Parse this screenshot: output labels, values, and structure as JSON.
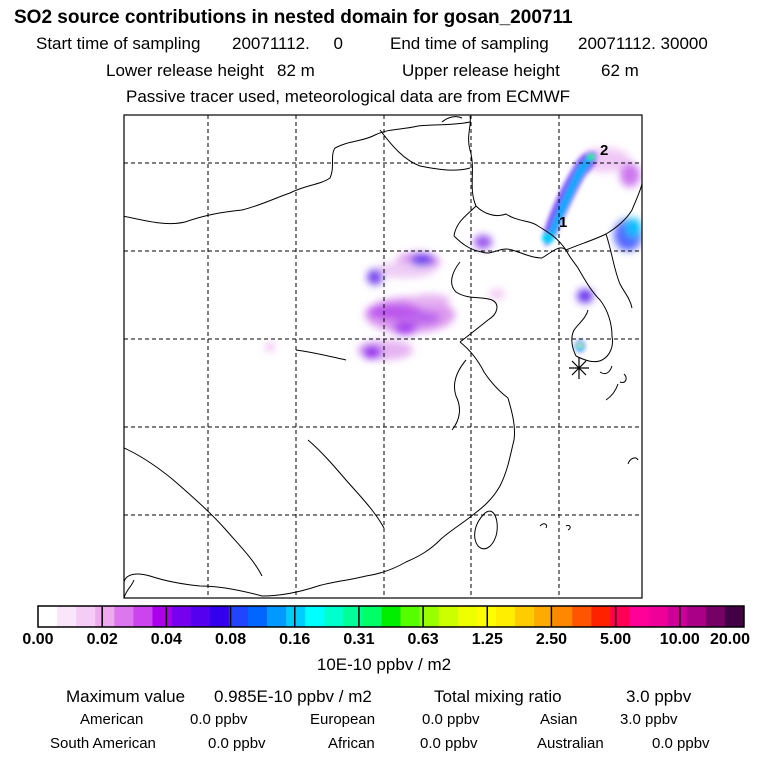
{
  "title": "SO2 source contributions in nested domain for gosan_200711",
  "sampling": {
    "start_label": "Start time of sampling",
    "start_value": "20071112.     0",
    "end_label": "End time of sampling",
    "end_value": "20071112. 30000"
  },
  "release": {
    "lower_label": "Lower release height",
    "lower_value": "82 m",
    "upper_label": "Upper release height",
    "upper_value": "62 m"
  },
  "note": "Passive tracer used, meteorological data are from ECMWF",
  "map": {
    "markers": [
      {
        "label": "1"
      },
      {
        "label": "2"
      }
    ],
    "receptor_symbol": "*"
  },
  "colorbar": {
    "colors": [
      "#ffffff",
      "#fae6fa",
      "#f5ccf5",
      "#eeaaee",
      "#dd77ee",
      "#cc44ee",
      "#aa00ee",
      "#7700ee",
      "#5500ee",
      "#3300ee",
      "#2244ff",
      "#0066ff",
      "#0099ff",
      "#00ccff",
      "#00ffff",
      "#00ffcc",
      "#00ff99",
      "#00ff66",
      "#00ee00",
      "#55ff00",
      "#99ff00",
      "#ccff00",
      "#eeff00",
      "#ffff00",
      "#ffee00",
      "#ffcc00",
      "#ffaa00",
      "#ff8800",
      "#ff5500",
      "#ff2200",
      "#ff0055",
      "#ff0099",
      "#ee0099",
      "#cc0099",
      "#aa0088",
      "#770066",
      "#440044"
    ],
    "labels": [
      "0.00",
      "0.02",
      "0.04",
      "0.08",
      "0.16",
      "0.31",
      "0.63",
      "1.25",
      "2.50",
      "5.00",
      "10.00",
      "20.00"
    ],
    "unit": "10E-10 ppbv / m2"
  },
  "summary": {
    "max_label": "Maximum value",
    "max_value": "0.985E-10 ppbv / m2",
    "total_label": "Total mixing ratio",
    "total_value": "3.0 ppbv",
    "regions": [
      {
        "name": "American",
        "value": "0.0 ppbv"
      },
      {
        "name": "European",
        "value": "0.0 ppbv"
      },
      {
        "name": "Asian",
        "value": "3.0 ppbv"
      },
      {
        "name": "South American",
        "value": "0.0 ppbv"
      },
      {
        "name": "African",
        "value": "0.0 ppbv"
      },
      {
        "name": "Australian",
        "value": "0.0 ppbv"
      }
    ]
  }
}
